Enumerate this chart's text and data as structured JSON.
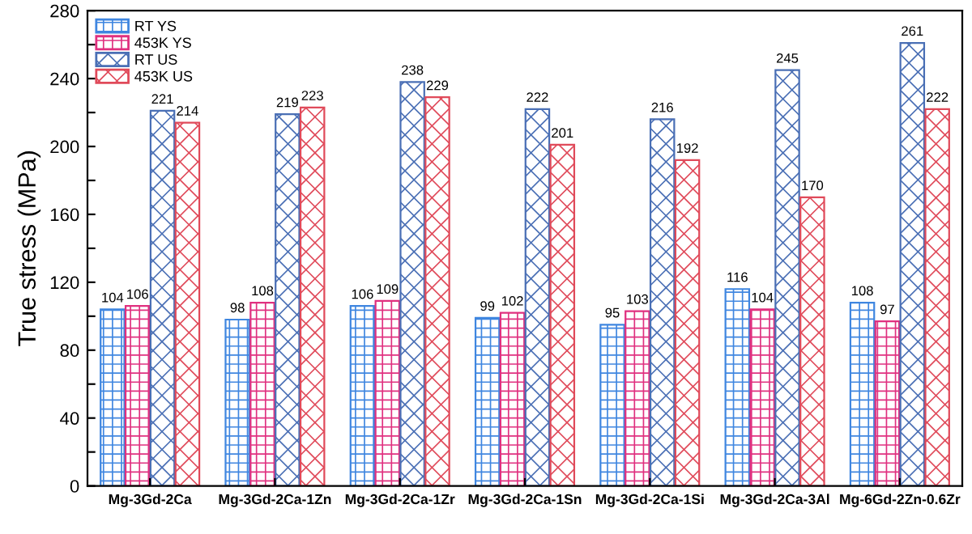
{
  "chart_data": {
    "type": "bar",
    "ylabel": "True stress (MPa)",
    "categories": [
      "Mg-3Gd-2Ca",
      "Mg-3Gd-2Ca-1Zn",
      "Mg-3Gd-2Ca-1Zr",
      "Mg-3Gd-2Ca-1Sn",
      "Mg-3Gd-2Ca-1Si",
      "Mg-3Gd-2Ca-3Al",
      "Mg-6Gd-2Zn-0.6Zr"
    ],
    "series": [
      {
        "name": "RT YS",
        "color": "#3f86e0",
        "values": [
          104,
          98,
          106,
          99,
          95,
          116,
          108
        ]
      },
      {
        "name": "453K YS",
        "color": "#e0307f",
        "values": [
          106,
          108,
          109,
          102,
          103,
          104,
          97
        ]
      },
      {
        "name": "RT US",
        "color": "#4a6fb5",
        "values": [
          221,
          219,
          238,
          222,
          216,
          245,
          261
        ]
      },
      {
        "name": "453K US",
        "color": "#e04a5a",
        "values": [
          214,
          223,
          229,
          201,
          192,
          170,
          222
        ]
      }
    ],
    "ylim": [
      0,
      280
    ],
    "yticks": [
      0,
      {
        "value": 20,
        "label": null
      },
      40,
      {
        "value": 60,
        "label": null
      },
      80,
      {
        "value": 100,
        "label": null
      },
      120,
      {
        "value": 140,
        "label": null
      },
      160,
      {
        "value": 180,
        "label": null
      },
      200,
      {
        "value": 220,
        "label": null
      },
      240,
      {
        "value": 260,
        "label": null
      },
      280
    ],
    "data_labels": true,
    "legend": "top left",
    "grid": false
  }
}
